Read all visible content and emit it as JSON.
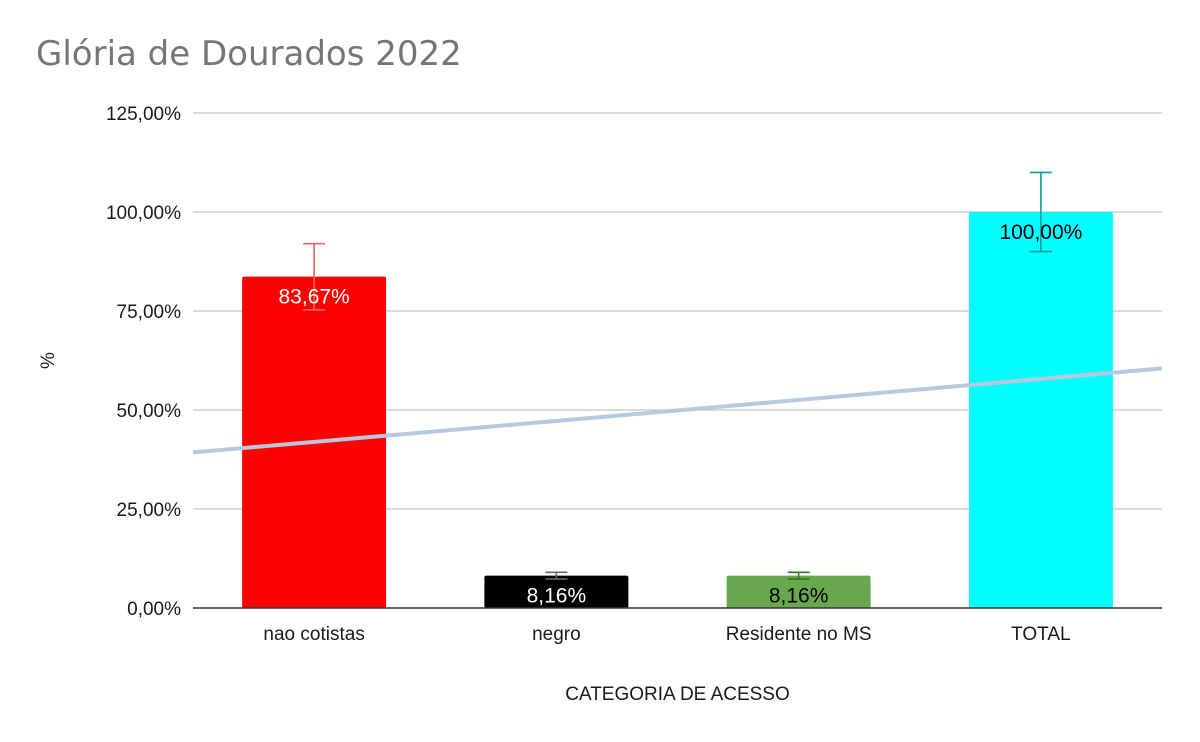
{
  "chart_data": {
    "type": "bar",
    "title": "Glória de Dourados 2022",
    "xlabel": "CATEGORIA DE ACESSO",
    "ylabel": "%",
    "categories": [
      "nao cotistas",
      "negro",
      "Residente no MS",
      "TOTAL"
    ],
    "values": [
      83.67,
      8.16,
      8.16,
      100.0
    ],
    "data_labels": [
      "83,67%",
      "8,16%",
      "8,16%",
      "100,00%"
    ],
    "error_bars": [
      {
        "low": 75.3,
        "high": 92.0
      },
      {
        "low": 7.3,
        "high": 9.0
      },
      {
        "low": 7.3,
        "high": 9.0
      },
      {
        "low": 90.0,
        "high": 110.0
      }
    ],
    "trendline": {
      "type": "linear",
      "start": 39.3,
      "end": 60.5
    },
    "ylim": [
      0,
      125
    ],
    "yticks": [
      0,
      25,
      50,
      75,
      100,
      125
    ],
    "ytick_labels": [
      "0,00%",
      "25,00%",
      "50,00%",
      "75,00%",
      "100,00%",
      "125,00%"
    ],
    "grid": true,
    "legend": "none",
    "colors": {
      "bars": [
        "#ff0000",
        "#000000",
        "#6aa84f",
        "#00ffff"
      ],
      "error_bars": [
        "#e06666",
        "#666666",
        "#38761d",
        "#0b9c9c"
      ],
      "labels": [
        "#ffffff",
        "#ffffff",
        "#000000",
        "#000000"
      ],
      "trendline": "#b7c9de",
      "grid": "#c4c4c4",
      "axis": "#333333"
    }
  }
}
